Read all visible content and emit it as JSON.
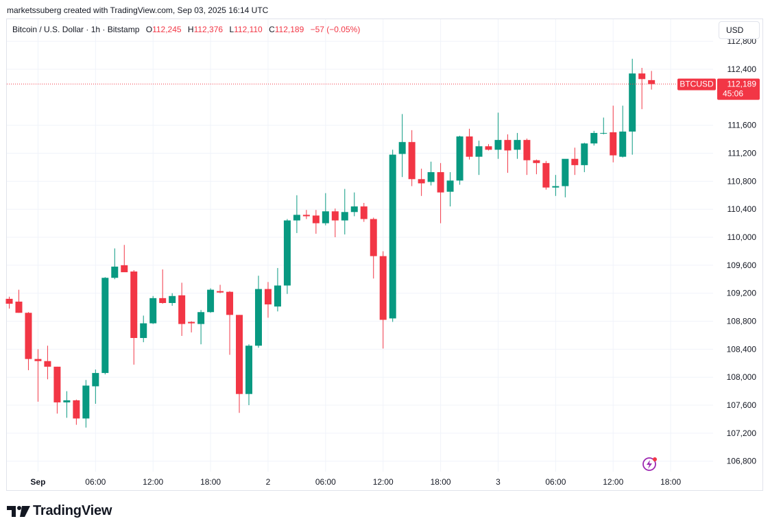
{
  "header": {
    "credit": "marketssuberg created with TradingView.com, Sep 03, 2025 16:14 UTC"
  },
  "legend": {
    "symbol": "Bitcoin / U.S. Dollar · 1h · Bitstamp",
    "o_label": "O",
    "o_value": "112,245",
    "h_label": "H",
    "h_value": "112,376",
    "l_label": "L",
    "l_value": "112,110",
    "c_label": "C",
    "c_value": "112,189",
    "change": "−57 (−0.05%)"
  },
  "currency_button": "USD",
  "price_tag": {
    "symbol": "BTCUSD",
    "price": "112,189",
    "countdown": "45:06"
  },
  "footer": {
    "logo_text": "TradingView"
  },
  "colors": {
    "up": "#089981",
    "down": "#f23645",
    "grid": "#f0f3fa",
    "axis_text": "#131722"
  },
  "icons": {
    "logo": "tradingview-logo-icon",
    "lightning": "lightning-icon"
  },
  "chart_data": {
    "type": "candlestick",
    "title": "Bitcoin / U.S. Dollar · 1h · Bitstamp",
    "interval": "1h",
    "ylim": [
      106650,
      112900
    ],
    "y_ticks": [
      "112,800",
      "112,400",
      "111,600",
      "111,200",
      "110,800",
      "110,400",
      "110,000",
      "109,600",
      "109,200",
      "108,800",
      "108,400",
      "108,000",
      "107,600",
      "107,200",
      "106,800"
    ],
    "y_tick_values": [
      112800,
      112400,
      111600,
      111200,
      110800,
      110400,
      110000,
      109600,
      109200,
      108800,
      108400,
      108000,
      107600,
      107200,
      106800
    ],
    "x_ticks": [
      "Sep",
      "06:00",
      "12:00",
      "18:00",
      "2",
      "06:00",
      "12:00",
      "18:00",
      "3",
      "06:00",
      "12:00",
      "18:00"
    ],
    "x_tick_index": [
      3,
      9,
      15,
      21,
      27,
      33,
      39,
      45,
      51,
      57,
      63,
      69
    ],
    "last_price": 112189,
    "grid": true,
    "candles": [
      {
        "o": 109120,
        "h": 109150,
        "l": 108980,
        "c": 109050
      },
      {
        "o": 109080,
        "h": 109250,
        "l": 108920,
        "c": 108920
      },
      {
        "o": 108920,
        "h": 108930,
        "l": 108100,
        "c": 108260
      },
      {
        "o": 108260,
        "h": 108400,
        "l": 107650,
        "c": 108230
      },
      {
        "o": 108230,
        "h": 108450,
        "l": 107970,
        "c": 108150
      },
      {
        "o": 108150,
        "h": 108150,
        "l": 107480,
        "c": 107640
      },
      {
        "o": 107640,
        "h": 107800,
        "l": 107420,
        "c": 107670
      },
      {
        "o": 107670,
        "h": 107680,
        "l": 107320,
        "c": 107410
      },
      {
        "o": 107410,
        "h": 107960,
        "l": 107280,
        "c": 107880
      },
      {
        "o": 107870,
        "h": 108110,
        "l": 107620,
        "c": 108060
      },
      {
        "o": 108060,
        "h": 109430,
        "l": 108040,
        "c": 109420
      },
      {
        "o": 109420,
        "h": 109840,
        "l": 109400,
        "c": 109580
      },
      {
        "o": 109600,
        "h": 109890,
        "l": 109520,
        "c": 109500
      },
      {
        "o": 109510,
        "h": 109530,
        "l": 108180,
        "c": 108560
      },
      {
        "o": 108560,
        "h": 108880,
        "l": 108500,
        "c": 108770
      },
      {
        "o": 108770,
        "h": 109160,
        "l": 108760,
        "c": 109130
      },
      {
        "o": 109130,
        "h": 109540,
        "l": 109050,
        "c": 109060
      },
      {
        "o": 109060,
        "h": 109200,
        "l": 109020,
        "c": 109160
      },
      {
        "o": 109170,
        "h": 109350,
        "l": 108590,
        "c": 108760
      },
      {
        "o": 108790,
        "h": 108800,
        "l": 108640,
        "c": 108770
      },
      {
        "o": 108760,
        "h": 108960,
        "l": 108470,
        "c": 108930
      },
      {
        "o": 108930,
        "h": 109270,
        "l": 108920,
        "c": 109250
      },
      {
        "o": 109230,
        "h": 109320,
        "l": 109200,
        "c": 109210
      },
      {
        "o": 109220,
        "h": 109230,
        "l": 108320,
        "c": 108890
      },
      {
        "o": 108890,
        "h": 108890,
        "l": 107490,
        "c": 107760
      },
      {
        "o": 107760,
        "h": 108470,
        "l": 107600,
        "c": 108450
      },
      {
        "o": 108450,
        "h": 109450,
        "l": 108420,
        "c": 109260
      },
      {
        "o": 109260,
        "h": 109360,
        "l": 108850,
        "c": 109040
      },
      {
        "o": 109010,
        "h": 109560,
        "l": 108940,
        "c": 109310
      },
      {
        "o": 109310,
        "h": 110260,
        "l": 109190,
        "c": 110240
      },
      {
        "o": 110240,
        "h": 110600,
        "l": 110060,
        "c": 110320
      },
      {
        "o": 110320,
        "h": 110390,
        "l": 110260,
        "c": 110300
      },
      {
        "o": 110310,
        "h": 110390,
        "l": 110050,
        "c": 110200
      },
      {
        "o": 110200,
        "h": 110630,
        "l": 110170,
        "c": 110370
      },
      {
        "o": 110370,
        "h": 110410,
        "l": 110000,
        "c": 110240
      },
      {
        "o": 110240,
        "h": 110690,
        "l": 110040,
        "c": 110360
      },
      {
        "o": 110360,
        "h": 110640,
        "l": 110300,
        "c": 110440
      },
      {
        "o": 110440,
        "h": 110490,
        "l": 110220,
        "c": 110260
      },
      {
        "o": 110260,
        "h": 110280,
        "l": 109410,
        "c": 109730
      },
      {
        "o": 109730,
        "h": 109800,
        "l": 108410,
        "c": 108820
      },
      {
        "o": 108840,
        "h": 111250,
        "l": 108790,
        "c": 111180
      },
      {
        "o": 111190,
        "h": 111760,
        "l": 110860,
        "c": 111360
      },
      {
        "o": 111360,
        "h": 111530,
        "l": 110730,
        "c": 110830
      },
      {
        "o": 110830,
        "h": 110980,
        "l": 110590,
        "c": 110770
      },
      {
        "o": 110790,
        "h": 111080,
        "l": 110740,
        "c": 110930
      },
      {
        "o": 110930,
        "h": 111060,
        "l": 110200,
        "c": 110640
      },
      {
        "o": 110650,
        "h": 110930,
        "l": 110440,
        "c": 110810
      },
      {
        "o": 110810,
        "h": 111450,
        "l": 110750,
        "c": 111440
      },
      {
        "o": 111440,
        "h": 111550,
        "l": 111110,
        "c": 111150
      },
      {
        "o": 111150,
        "h": 111380,
        "l": 110890,
        "c": 111300
      },
      {
        "o": 111300,
        "h": 111330,
        "l": 111240,
        "c": 111250
      },
      {
        "o": 111250,
        "h": 111780,
        "l": 111120,
        "c": 111390
      },
      {
        "o": 111390,
        "h": 111470,
        "l": 110920,
        "c": 111240
      },
      {
        "o": 111250,
        "h": 111490,
        "l": 111120,
        "c": 111390
      },
      {
        "o": 111390,
        "h": 111410,
        "l": 110890,
        "c": 111100
      },
      {
        "o": 111100,
        "h": 111110,
        "l": 110900,
        "c": 111060
      },
      {
        "o": 111060,
        "h": 111090,
        "l": 110680,
        "c": 110710
      },
      {
        "o": 110710,
        "h": 110890,
        "l": 110590,
        "c": 110730
      },
      {
        "o": 110730,
        "h": 111110,
        "l": 110570,
        "c": 111120
      },
      {
        "o": 111120,
        "h": 111280,
        "l": 110890,
        "c": 111030
      },
      {
        "o": 111030,
        "h": 111350,
        "l": 110930,
        "c": 111340
      },
      {
        "o": 111340,
        "h": 111520,
        "l": 111310,
        "c": 111490
      },
      {
        "o": 111490,
        "h": 111710,
        "l": 111470,
        "c": 111490
      },
      {
        "o": 111500,
        "h": 111880,
        "l": 111070,
        "c": 111170
      },
      {
        "o": 111150,
        "h": 111880,
        "l": 111140,
        "c": 111510
      },
      {
        "o": 111510,
        "h": 112550,
        "l": 111180,
        "c": 112340
      },
      {
        "o": 112340,
        "h": 112420,
        "l": 111830,
        "c": 112260
      },
      {
        "o": 112245,
        "h": 112376,
        "l": 112110,
        "c": 112189
      }
    ]
  }
}
